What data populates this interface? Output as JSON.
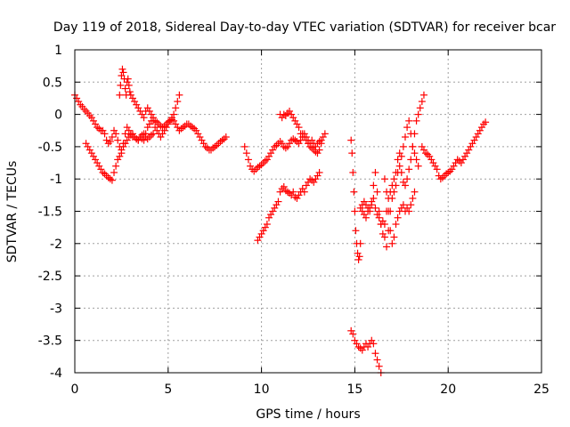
{
  "chart_data": {
    "type": "scatter",
    "title": "Day 119 of 2018, Sidereal Day-to-day VTEC variation (SDTVAR) for receiver bcar",
    "xlabel": "GPS time / hours",
    "ylabel": "SDTVAR / TECUs",
    "xlim": [
      0,
      25
    ],
    "ylim": [
      -4,
      1
    ],
    "xticks": [
      0,
      5,
      10,
      15,
      20,
      25
    ],
    "yticks": [
      -4,
      -3.5,
      -3,
      -2.5,
      -2,
      -1.5,
      -1,
      -0.5,
      0,
      0.5,
      1
    ],
    "grid": true,
    "marker": "plus",
    "color": "#ff0000",
    "series": [
      {
        "x": [
          0.0,
          0.1,
          0.2,
          0.3,
          0.4,
          0.5,
          0.6,
          0.7,
          0.8,
          0.9,
          1.0,
          1.1,
          1.2,
          1.3,
          1.4,
          1.5,
          1.6,
          1.7,
          1.8,
          1.9,
          2.0,
          2.1,
          2.2,
          2.3,
          2.4,
          2.5,
          2.6,
          2.7,
          2.8,
          2.9,
          3.0,
          3.1,
          3.2,
          3.3,
          3.4,
          3.5,
          3.6,
          3.7,
          3.8,
          3.9,
          4.0,
          4.1,
          4.2,
          4.3,
          4.4,
          4.5,
          4.6,
          4.7,
          4.8,
          4.9,
          5.0,
          5.1,
          5.2,
          5.3,
          5.4,
          5.5,
          5.6,
          5.7,
          5.8,
          5.9,
          6.0,
          6.1,
          6.2,
          6.3,
          6.4,
          6.5,
          6.6,
          6.7,
          6.8,
          6.9,
          7.0,
          7.1,
          7.2,
          7.3,
          7.4,
          7.5,
          7.6,
          7.7,
          7.8,
          7.9,
          8.0,
          8.1
        ],
        "y": [
          0.3,
          0.25,
          0.2,
          0.15,
          0.12,
          0.08,
          0.05,
          0.02,
          -0.02,
          -0.05,
          -0.1,
          -0.15,
          -0.2,
          -0.22,
          -0.25,
          -0.25,
          -0.3,
          -0.4,
          -0.45,
          -0.42,
          -0.35,
          -0.25,
          -0.3,
          -0.4,
          -0.5,
          -0.55,
          -0.45,
          -0.3,
          -0.2,
          -0.25,
          -0.3,
          -0.35,
          -0.35,
          -0.38,
          -0.4,
          -0.35,
          -0.38,
          -0.4,
          -0.3,
          -0.2,
          -0.15,
          -0.1,
          -0.05,
          -0.1,
          -0.12,
          -0.15,
          -0.18,
          -0.2,
          -0.18,
          -0.15,
          -0.12,
          -0.1,
          -0.08,
          -0.1,
          -0.15,
          -0.2,
          -0.25,
          -0.22,
          -0.2,
          -0.18,
          -0.15,
          -0.15,
          -0.18,
          -0.2,
          -0.22,
          -0.25,
          -0.3,
          -0.35,
          -0.4,
          -0.45,
          -0.5,
          -0.52,
          -0.55,
          -0.55,
          -0.52,
          -0.5,
          -0.48,
          -0.45,
          -0.42,
          -0.4,
          -0.38,
          -0.35
        ]
      },
      {
        "x": [
          0.6,
          0.7,
          0.8,
          0.9,
          1.0,
          1.1,
          1.2,
          1.3,
          1.4,
          1.5,
          1.6,
          1.7,
          1.8,
          1.9,
          2.0,
          2.1,
          2.2,
          2.3,
          2.4,
          2.5,
          2.6,
          2.7,
          2.8,
          2.9,
          3.0,
          3.1,
          3.2,
          3.3,
          3.4,
          3.5,
          3.6,
          3.7,
          3.8,
          3.9,
          4.0,
          4.1,
          4.2
        ],
        "y": [
          -0.45,
          -0.5,
          -0.55,
          -0.6,
          -0.65,
          -0.7,
          -0.75,
          -0.8,
          -0.85,
          -0.9,
          -0.92,
          -0.95,
          -0.98,
          -1.0,
          -1.02,
          -0.9,
          -0.8,
          -0.7,
          -0.65,
          -0.6,
          -0.5,
          -0.45,
          -0.4,
          -0.35,
          -0.32,
          -0.3,
          -0.35,
          -0.38,
          -0.4,
          -0.35,
          -0.32,
          -0.3,
          -0.35,
          -0.38,
          -0.35,
          -0.32,
          -0.3
        ]
      },
      {
        "x": [
          2.4,
          2.45,
          2.5,
          2.55,
          2.6,
          2.65,
          2.7,
          2.75,
          2.8,
          2.85,
          2.9,
          2.95,
          3.0,
          3.1,
          3.2,
          3.3,
          3.4,
          3.5,
          3.6,
          3.7,
          3.8,
          3.9,
          4.0,
          4.1,
          4.2,
          4.3,
          4.4,
          4.5,
          4.6,
          4.7,
          4.8,
          4.9,
          5.0,
          5.1,
          5.2,
          5.3,
          5.4,
          5.5,
          5.6
        ],
        "y": [
          0.3,
          0.45,
          0.6,
          0.7,
          0.65,
          0.55,
          0.4,
          0.3,
          0.5,
          0.55,
          0.45,
          0.35,
          0.3,
          0.25,
          0.2,
          0.15,
          0.1,
          0.05,
          0.0,
          -0.05,
          0.05,
          0.1,
          0.05,
          0.0,
          -0.1,
          -0.2,
          -0.25,
          -0.3,
          -0.35,
          -0.3,
          -0.25,
          -0.2,
          -0.15,
          -0.1,
          -0.05,
          0.0,
          0.1,
          0.2,
          0.3
        ]
      },
      {
        "x": [
          9.1,
          9.2,
          9.3,
          9.4,
          9.5,
          9.6,
          9.7,
          9.8,
          9.9,
          10.0,
          10.1,
          10.2,
          10.3,
          10.4,
          10.5,
          10.6,
          10.7,
          10.8,
          10.9,
          11.0,
          11.1,
          11.2,
          11.3,
          11.4,
          11.5,
          11.6,
          11.7,
          11.8,
          11.9,
          12.0,
          12.1,
          12.2,
          12.3,
          12.4,
          12.5,
          12.6,
          12.7,
          12.8,
          12.9,
          13.0,
          13.1,
          13.2,
          13.3,
          13.4
        ],
        "y": [
          -0.5,
          -0.6,
          -0.7,
          -0.8,
          -0.85,
          -0.88,
          -0.85,
          -0.82,
          -0.8,
          -0.78,
          -0.75,
          -0.72,
          -0.7,
          -0.65,
          -0.6,
          -0.55,
          -0.5,
          -0.48,
          -0.45,
          -0.42,
          -0.45,
          -0.5,
          -0.52,
          -0.5,
          -0.45,
          -0.4,
          -0.38,
          -0.4,
          -0.42,
          -0.45,
          -0.4,
          -0.3,
          -0.35,
          -0.4,
          -0.45,
          -0.5,
          -0.52,
          -0.55,
          -0.58,
          -0.6,
          -0.55,
          -0.45,
          -0.35,
          -0.3
        ]
      },
      {
        "x": [
          9.8,
          9.9,
          10.0,
          10.1,
          10.2,
          10.3,
          10.4,
          10.5,
          10.6,
          10.7,
          10.8,
          10.9,
          11.0,
          11.1,
          11.2,
          11.3,
          11.4,
          11.5,
          11.6,
          11.7,
          11.8,
          11.9,
          12.0,
          12.1,
          12.2,
          12.3,
          12.4,
          12.5,
          12.6,
          12.7,
          12.8,
          12.9,
          13.0,
          13.1
        ],
        "y": [
          -1.95,
          -1.9,
          -1.85,
          -1.8,
          -1.75,
          -1.7,
          -1.6,
          -1.55,
          -1.5,
          -1.45,
          -1.4,
          -1.35,
          -1.2,
          -1.15,
          -1.12,
          -1.18,
          -1.2,
          -1.22,
          -1.25,
          -1.2,
          -1.28,
          -1.3,
          -1.25,
          -1.2,
          -1.15,
          -1.2,
          -1.1,
          -1.05,
          -1.0,
          -1.02,
          -1.05,
          -1.0,
          -0.95,
          -0.9
        ]
      },
      {
        "x": [
          11.0,
          11.1,
          11.2,
          11.3,
          11.4,
          11.5,
          11.6,
          11.7,
          11.8,
          11.9,
          12.0,
          12.1,
          12.2,
          12.3,
          12.4,
          12.5,
          12.6,
          12.7,
          12.8,
          12.9,
          13.0,
          13.1,
          13.2
        ],
        "y": [
          0.0,
          -0.05,
          0.0,
          -0.02,
          0.02,
          0.05,
          0.0,
          -0.05,
          -0.1,
          -0.15,
          -0.2,
          -0.3,
          -0.35,
          -0.3,
          -0.35,
          -0.4,
          -0.45,
          -0.4,
          -0.45,
          -0.5,
          -0.45,
          -0.42,
          -0.4
        ]
      },
      {
        "x": [
          14.8,
          14.85,
          14.9,
          14.95,
          15.0,
          15.05,
          15.1,
          15.15,
          15.2,
          15.25,
          15.3,
          15.4,
          15.5,
          15.6,
          15.7,
          15.8,
          15.9,
          16.0,
          16.1,
          16.2,
          16.3,
          16.4,
          16.5,
          16.6,
          16.7,
          16.8,
          16.9,
          17.0,
          17.1,
          17.2,
          17.3,
          17.4,
          17.5,
          17.6,
          17.7,
          17.8,
          17.9,
          18.0,
          18.1,
          18.2,
          18.3,
          18.4,
          18.5,
          18.6,
          18.7
        ],
        "y": [
          -0.4,
          -0.6,
          -0.9,
          -1.2,
          -1.5,
          -1.8,
          -2.0,
          -2.15,
          -2.25,
          -2.2,
          -2.0,
          -1.4,
          -1.35,
          -1.4,
          -1.45,
          -1.5,
          -1.4,
          -1.3,
          -1.45,
          -1.55,
          -1.6,
          -1.7,
          -1.65,
          -1.9,
          -2.05,
          -1.8,
          -1.5,
          -1.3,
          -1.2,
          -1.1,
          -0.9,
          -0.8,
          -0.9,
          -1.05,
          -1.1,
          -1.0,
          -0.85,
          -0.7,
          -0.5,
          -0.3,
          -0.1,
          0.0,
          0.1,
          0.2,
          0.3
        ]
      },
      {
        "x": [
          15.3,
          15.4,
          15.5,
          15.6,
          15.7,
          15.8,
          15.9,
          16.0,
          16.1,
          16.2,
          16.3,
          16.4,
          16.5,
          16.6,
          16.7,
          16.8,
          16.9,
          17.0,
          17.1,
          17.2,
          17.3,
          17.4,
          17.5,
          17.6,
          17.7,
          17.8,
          17.9,
          18.0,
          18.1,
          18.2,
          18.3,
          18.4
        ],
        "y": [
          -1.45,
          -1.5,
          -1.55,
          -1.6,
          -1.5,
          -1.45,
          -1.35,
          -1.1,
          -0.9,
          -1.2,
          -1.5,
          -1.7,
          -1.85,
          -1.7,
          -1.5,
          -1.3,
          -1.2,
          -1.1,
          -1.0,
          -0.9,
          -0.7,
          -0.6,
          -0.65,
          -0.5,
          -0.35,
          -0.2,
          -0.1,
          -0.3,
          -0.5,
          -0.6,
          -0.7,
          -0.8
        ]
      },
      {
        "x": [
          16.6,
          16.7,
          16.8,
          16.9,
          17.0,
          17.1,
          17.2,
          17.3,
          17.4,
          17.5,
          17.6,
          17.7,
          17.8,
          17.9,
          18.0,
          18.1,
          18.2
        ],
        "y": [
          -1.0,
          -1.2,
          -1.5,
          -1.8,
          -2.0,
          -1.9,
          -1.7,
          -1.6,
          -1.5,
          -1.45,
          -1.4,
          -1.5,
          -1.45,
          -1.5,
          -1.4,
          -1.3,
          -1.2
        ]
      },
      {
        "x": [
          18.6,
          18.7,
          18.8,
          18.9,
          19.0,
          19.1,
          19.2,
          19.3,
          19.4,
          19.5,
          19.6,
          19.7,
          19.8,
          19.9,
          20.0,
          20.1,
          20.2,
          20.3,
          20.4,
          20.5,
          20.6,
          20.7,
          20.8,
          20.9,
          21.0,
          21.1,
          21.2,
          21.3,
          21.4,
          21.5,
          21.6,
          21.7,
          21.8,
          21.9,
          22.0
        ],
        "y": [
          -0.5,
          -0.55,
          -0.6,
          -0.62,
          -0.65,
          -0.7,
          -0.75,
          -0.8,
          -0.85,
          -0.95,
          -1.0,
          -0.98,
          -0.95,
          -0.92,
          -0.9,
          -0.88,
          -0.85,
          -0.8,
          -0.75,
          -0.7,
          -0.72,
          -0.75,
          -0.7,
          -0.65,
          -0.6,
          -0.55,
          -0.5,
          -0.45,
          -0.4,
          -0.35,
          -0.3,
          -0.25,
          -0.2,
          -0.15,
          -0.12
        ]
      },
      {
        "x": [
          14.8,
          14.9,
          15.0,
          15.1,
          15.2,
          15.3,
          15.4,
          15.5,
          15.6,
          15.7,
          15.8,
          15.9,
          16.0,
          16.1,
          16.2,
          16.3,
          16.4
        ],
        "y": [
          -3.35,
          -3.4,
          -3.5,
          -3.55,
          -3.6,
          -3.62,
          -3.65,
          -3.6,
          -3.55,
          -3.6,
          -3.55,
          -3.5,
          -3.55,
          -3.7,
          -3.8,
          -3.9,
          -4.0
        ]
      }
    ]
  }
}
